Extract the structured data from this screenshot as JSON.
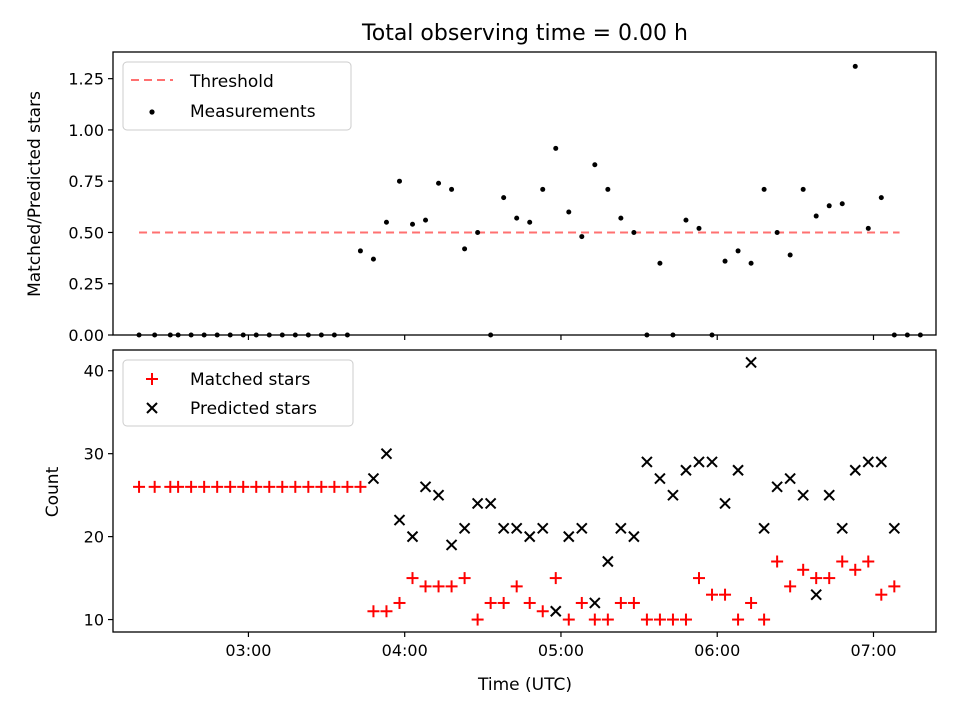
{
  "chart_data": [
    {
      "type": "scatter",
      "title": "Total observing time = 0.00 h",
      "xlabel": "",
      "ylabel": "Matched/Predicted stars",
      "xlim": [
        "02:08",
        "07:24"
      ],
      "ylim": [
        0,
        1.38
      ],
      "x_ticks": [
        "03:00",
        "04:00",
        "05:00",
        "06:00",
        "07:00"
      ],
      "y_ticks": [
        "0.00",
        "0.25",
        "0.50",
        "0.75",
        "1.00",
        "1.25"
      ],
      "legend": {
        "position": "top-left",
        "entries": [
          "Threshold",
          "Measurements"
        ]
      },
      "threshold": {
        "name": "Threshold",
        "value": 0.5,
        "x_start": "02:18",
        "x_end": "07:10",
        "color": "#ff7070"
      },
      "series": [
        {
          "name": "Measurements",
          "color": "#000000",
          "x": [
            "02:18",
            "02:24",
            "02:30",
            "02:33",
            "02:38",
            "02:43",
            "02:48",
            "02:53",
            "02:58",
            "03:03",
            "03:08",
            "03:13",
            "03:18",
            "03:23",
            "03:28",
            "03:33",
            "03:38",
            "03:43",
            "03:48",
            "03:53",
            "03:58",
            "04:03",
            "04:08",
            "04:13",
            "04:18",
            "04:23",
            "04:28",
            "04:33",
            "04:38",
            "04:43",
            "04:48",
            "04:53",
            "04:58",
            "05:03",
            "05:08",
            "05:13",
            "05:18",
            "05:23",
            "05:28",
            "05:33",
            "05:38",
            "05:43",
            "05:48",
            "05:53",
            "05:58",
            "06:03",
            "06:08",
            "06:13",
            "06:18",
            "06:23",
            "06:28",
            "06:33",
            "06:38",
            "06:43",
            "06:48",
            "06:53",
            "06:58",
            "07:03",
            "07:08",
            "07:13",
            "07:18"
          ],
          "y": [
            0,
            0,
            0,
            0,
            0,
            0,
            0,
            0,
            0,
            0,
            0,
            0,
            0,
            0,
            0,
            0,
            0,
            0.41,
            0.37,
            0.55,
            0.75,
            0.54,
            0.56,
            0.74,
            0.71,
            0.42,
            0.5,
            0,
            0.67,
            0.57,
            0.55,
            0.71,
            0.91,
            0.6,
            0.48,
            0.83,
            0.71,
            0.57,
            0.5,
            0,
            0.35,
            0,
            0.56,
            0.52,
            0,
            0.36,
            0.41,
            0.35,
            0.71,
            0.5,
            0.39,
            0.71,
            0.58,
            0.63,
            0.64,
            1.31,
            0.52,
            0.67,
            0,
            0,
            0
          ]
        }
      ]
    },
    {
      "type": "scatter",
      "title": "",
      "xlabel": "Time (UTC)",
      "ylabel": "Count",
      "xlim": [
        "02:08",
        "07:24"
      ],
      "ylim": [
        8.5,
        42.5
      ],
      "x_ticks": [
        "03:00",
        "04:00",
        "05:00",
        "06:00",
        "07:00"
      ],
      "y_ticks": [
        "10",
        "20",
        "30",
        "40"
      ],
      "legend": {
        "position": "top-left",
        "entries": [
          "Matched stars",
          "Predicted stars"
        ]
      },
      "series": [
        {
          "name": "Matched stars",
          "color": "#ff0000",
          "marker": "+",
          "x": [
            "02:18",
            "02:24",
            "02:30",
            "02:33",
            "02:38",
            "02:43",
            "02:48",
            "02:53",
            "02:58",
            "03:03",
            "03:08",
            "03:13",
            "03:18",
            "03:23",
            "03:28",
            "03:33",
            "03:38",
            "03:43",
            "03:48",
            "03:53",
            "03:58",
            "04:03",
            "04:08",
            "04:13",
            "04:18",
            "04:23",
            "04:28",
            "04:33",
            "04:38",
            "04:43",
            "04:48",
            "04:53",
            "04:58",
            "05:03",
            "05:08",
            "05:13",
            "05:18",
            "05:23",
            "05:28",
            "05:33",
            "05:38",
            "05:43",
            "05:48",
            "05:53",
            "05:58",
            "06:03",
            "06:08",
            "06:13",
            "06:18",
            "06:23",
            "06:28",
            "06:33",
            "06:38",
            "06:43",
            "06:48",
            "06:53",
            "06:58",
            "07:03",
            "07:08"
          ],
          "y": [
            26,
            26,
            26,
            26,
            26,
            26,
            26,
            26,
            26,
            26,
            26,
            26,
            26,
            26,
            26,
            26,
            26,
            26,
            11,
            11,
            12,
            15,
            14,
            14,
            14,
            15,
            10,
            12,
            12,
            14,
            12,
            11,
            15,
            10,
            12,
            10,
            10,
            12,
            12,
            10,
            10,
            10,
            10,
            15,
            13,
            13,
            10,
            12,
            10,
            17,
            14,
            16,
            15,
            15,
            17,
            16,
            17,
            13,
            14
          ]
        },
        {
          "name": "Predicted stars",
          "color": "#000000",
          "marker": "x",
          "x": [
            "03:48",
            "03:53",
            "03:58",
            "04:03",
            "04:08",
            "04:13",
            "04:18",
            "04:23",
            "04:28",
            "04:33",
            "04:38",
            "04:43",
            "04:48",
            "04:53",
            "04:58",
            "05:03",
            "05:08",
            "05:13",
            "05:18",
            "05:23",
            "05:28",
            "05:33",
            "05:38",
            "05:43",
            "05:48",
            "05:53",
            "05:58",
            "06:03",
            "06:08",
            "06:13",
            "06:18",
            "06:23",
            "06:28",
            "06:33",
            "06:38",
            "06:43",
            "06:48",
            "06:53",
            "06:58",
            "07:03",
            "07:08"
          ],
          "y": [
            27,
            30,
            22,
            20,
            26,
            25,
            19,
            21,
            24,
            24,
            21,
            21,
            20,
            21,
            11,
            20,
            21,
            12,
            17,
            21,
            20,
            29,
            27,
            25,
            28,
            29,
            29,
            24,
            28,
            41,
            21,
            26,
            27,
            25,
            13,
            25,
            21,
            28,
            29,
            29,
            21
          ]
        }
      ]
    }
  ]
}
